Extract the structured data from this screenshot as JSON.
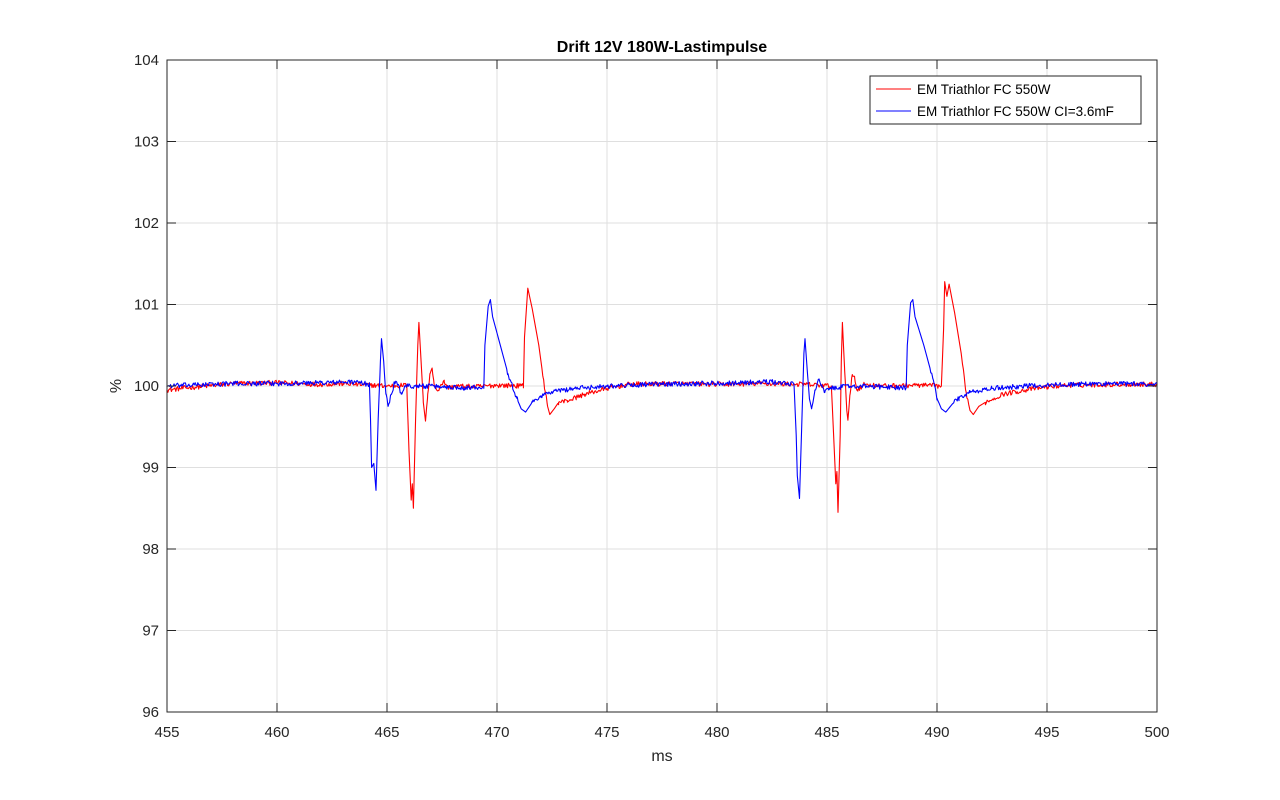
{
  "chart_data": {
    "type": "line",
    "title": "Drift 12V 180W-Lastimpulse",
    "xlabel": "ms",
    "ylabel": "%",
    "xlim": [
      455,
      500
    ],
    "ylim": [
      96,
      104
    ],
    "xticks": [
      455,
      460,
      465,
      470,
      475,
      480,
      485,
      490,
      495,
      500
    ],
    "yticks": [
      96,
      97,
      98,
      99,
      100,
      101,
      102,
      103,
      104
    ],
    "grid": true,
    "legend_position": "top-right",
    "series": [
      {
        "name": "EM Triathlor FC 550W",
        "color": "#ff0000",
        "baseline_noise": 0.03,
        "points": [
          [
            455,
            99.95
          ],
          [
            456,
            99.98
          ],
          [
            458,
            100.03
          ],
          [
            460,
            100.04
          ],
          [
            462,
            100.02
          ],
          [
            463,
            100.03
          ],
          [
            465,
            100.0
          ],
          [
            465.9,
            100.01
          ],
          [
            466.0,
            99.2
          ],
          [
            466.1,
            98.6
          ],
          [
            466.15,
            98.8
          ],
          [
            466.2,
            98.5
          ],
          [
            466.3,
            99.6
          ],
          [
            466.4,
            100.5
          ],
          [
            466.45,
            100.78
          ],
          [
            466.55,
            100.3
          ],
          [
            466.65,
            99.8
          ],
          [
            466.75,
            99.57
          ],
          [
            466.85,
            99.9
          ],
          [
            466.95,
            100.15
          ],
          [
            467.05,
            100.22
          ],
          [
            467.15,
            100.0
          ],
          [
            467.3,
            99.94
          ],
          [
            467.45,
            100.02
          ],
          [
            467.6,
            100.05
          ],
          [
            467.8,
            99.98
          ],
          [
            468.2,
            100.0
          ],
          [
            469,
            99.99
          ],
          [
            470,
            100.01
          ],
          [
            471.2,
            100.0
          ],
          [
            471.25,
            100.6
          ],
          [
            471.4,
            101.2
          ],
          [
            471.6,
            100.95
          ],
          [
            471.9,
            100.5
          ],
          [
            472.1,
            100.1
          ],
          [
            472.3,
            99.75
          ],
          [
            472.4,
            99.65
          ],
          [
            472.6,
            99.72
          ],
          [
            472.8,
            99.8
          ],
          [
            473.2,
            99.82
          ],
          [
            473.6,
            99.86
          ],
          [
            474,
            99.9
          ],
          [
            475,
            99.97
          ],
          [
            476,
            100.02
          ],
          [
            478,
            100.03
          ],
          [
            480,
            100.02
          ],
          [
            482,
            100.03
          ],
          [
            484,
            100.02
          ],
          [
            485.2,
            100.0
          ],
          [
            485.3,
            99.4
          ],
          [
            485.4,
            98.8
          ],
          [
            485.45,
            98.95
          ],
          [
            485.5,
            98.45
          ],
          [
            485.6,
            99.4
          ],
          [
            485.65,
            100.3
          ],
          [
            485.7,
            100.78
          ],
          [
            485.8,
            100.2
          ],
          [
            485.9,
            99.7
          ],
          [
            485.95,
            99.58
          ],
          [
            486.05,
            99.9
          ],
          [
            486.15,
            100.14
          ],
          [
            486.25,
            100.12
          ],
          [
            486.35,
            99.95
          ],
          [
            486.5,
            99.98
          ],
          [
            486.7,
            100.02
          ],
          [
            487.5,
            100.0
          ],
          [
            489,
            100.01
          ],
          [
            490.2,
            100.0
          ],
          [
            490.3,
            100.7
          ],
          [
            490.35,
            101.28
          ],
          [
            490.45,
            101.1
          ],
          [
            490.55,
            101.25
          ],
          [
            490.8,
            100.9
          ],
          [
            491.1,
            100.4
          ],
          [
            491.3,
            99.95
          ],
          [
            491.5,
            99.7
          ],
          [
            491.65,
            99.65
          ],
          [
            491.9,
            99.75
          ],
          [
            492.2,
            99.8
          ],
          [
            492.6,
            99.85
          ],
          [
            493,
            99.9
          ],
          [
            494,
            99.95
          ],
          [
            495,
            99.99
          ],
          [
            496,
            100.01
          ],
          [
            498,
            100.02
          ],
          [
            500,
            100.02
          ]
        ]
      },
      {
        "name": "EM Triathlor FC 550W CI=3.6mF",
        "color": "#0000ff",
        "baseline_noise": 0.03,
        "points": [
          [
            455,
            100.0
          ],
          [
            456,
            100.01
          ],
          [
            458,
            100.03
          ],
          [
            460,
            100.03
          ],
          [
            462,
            100.04
          ],
          [
            463.5,
            100.05
          ],
          [
            464.2,
            100.02
          ],
          [
            464.25,
            99.6
          ],
          [
            464.3,
            99.0
          ],
          [
            464.4,
            99.05
          ],
          [
            464.5,
            98.72
          ],
          [
            464.6,
            99.6
          ],
          [
            464.7,
            100.3
          ],
          [
            464.75,
            100.58
          ],
          [
            464.85,
            100.3
          ],
          [
            464.95,
            99.9
          ],
          [
            465.05,
            99.75
          ],
          [
            465.2,
            99.9
          ],
          [
            465.35,
            100.05
          ],
          [
            465.5,
            100.02
          ],
          [
            465.65,
            99.9
          ],
          [
            465.8,
            100.0
          ],
          [
            466.5,
            100.0
          ],
          [
            467.5,
            99.99
          ],
          [
            468.5,
            99.98
          ],
          [
            469.4,
            99.99
          ],
          [
            469.45,
            100.5
          ],
          [
            469.6,
            100.98
          ],
          [
            469.7,
            101.06
          ],
          [
            469.8,
            100.85
          ],
          [
            470.1,
            100.55
          ],
          [
            470.5,
            100.15
          ],
          [
            470.9,
            99.85
          ],
          [
            471.1,
            99.72
          ],
          [
            471.3,
            99.68
          ],
          [
            471.6,
            99.8
          ],
          [
            472,
            99.88
          ],
          [
            472.5,
            99.93
          ],
          [
            473.5,
            99.97
          ],
          [
            475,
            100.0
          ],
          [
            477,
            100.02
          ],
          [
            479,
            100.03
          ],
          [
            481,
            100.04
          ],
          [
            482.5,
            100.05
          ],
          [
            483.5,
            100.02
          ],
          [
            483.6,
            99.4
          ],
          [
            483.65,
            98.9
          ],
          [
            483.75,
            98.62
          ],
          [
            483.85,
            99.5
          ],
          [
            483.95,
            100.4
          ],
          [
            484.0,
            100.58
          ],
          [
            484.1,
            100.2
          ],
          [
            484.2,
            99.85
          ],
          [
            484.3,
            99.72
          ],
          [
            484.45,
            99.95
          ],
          [
            484.6,
            100.08
          ],
          [
            484.75,
            100.0
          ],
          [
            484.9,
            99.92
          ],
          [
            485.1,
            99.97
          ],
          [
            486,
            100.0
          ],
          [
            487.5,
            99.99
          ],
          [
            488.6,
            99.98
          ],
          [
            488.65,
            100.5
          ],
          [
            488.8,
            101.02
          ],
          [
            488.9,
            101.06
          ],
          [
            489.0,
            100.85
          ],
          [
            489.4,
            100.5
          ],
          [
            489.8,
            100.1
          ],
          [
            490.0,
            99.85
          ],
          [
            490.2,
            99.72
          ],
          [
            490.4,
            99.68
          ],
          [
            490.7,
            99.78
          ],
          [
            491.0,
            99.85
          ],
          [
            491.5,
            99.92
          ],
          [
            492.5,
            99.97
          ],
          [
            494,
            100.0
          ],
          [
            496,
            100.02
          ],
          [
            498,
            100.03
          ],
          [
            500,
            100.02
          ]
        ]
      }
    ]
  }
}
